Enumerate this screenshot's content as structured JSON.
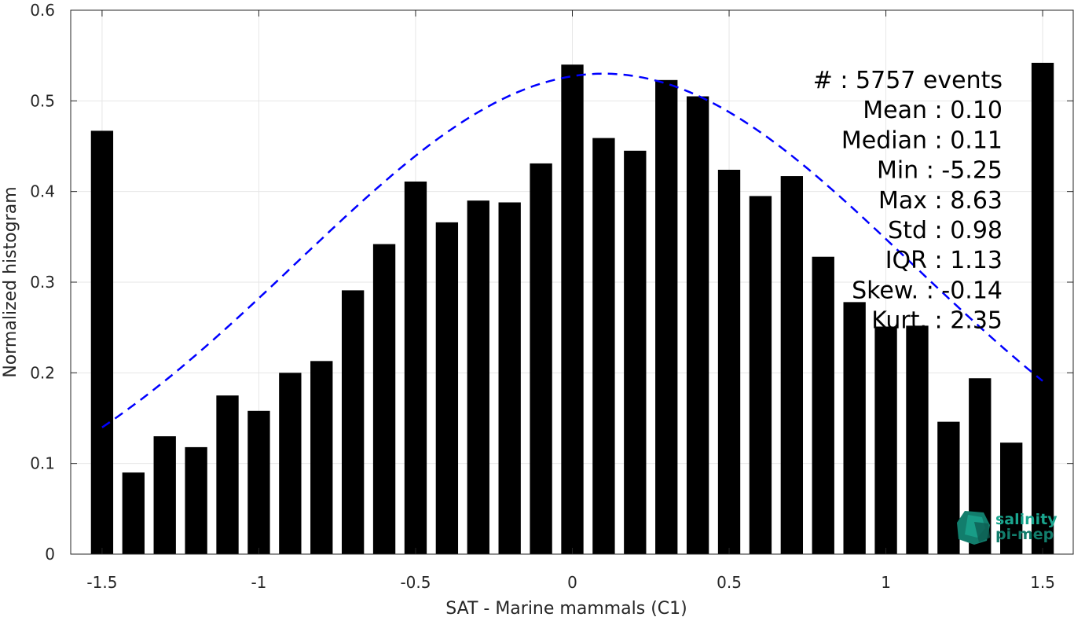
{
  "chart_data": {
    "type": "bar",
    "xlabel": "SAT - Marine mammals (C1)",
    "ylabel": "Normalized histogram",
    "xlim": [
      -1.6,
      1.6
    ],
    "ylim": [
      0,
      0.6
    ],
    "xticks": [
      "-1.5",
      "-1",
      "-0.5",
      "0",
      "0.5",
      "1",
      "1.5"
    ],
    "yticks": [
      "0",
      "0.1",
      "0.2",
      "0.3",
      "0.4",
      "0.5",
      "0.6"
    ],
    "grid": true,
    "bar_color": "#000000",
    "fit_color": "#0000ff",
    "x": [
      -1.5,
      -1.4,
      -1.3,
      -1.2,
      -1.1,
      -1.0,
      -0.9,
      -0.8,
      -0.7,
      -0.6,
      -0.5,
      -0.4,
      -0.3,
      -0.2,
      -0.1,
      0.0,
      0.1,
      0.2,
      0.3,
      0.4,
      0.5,
      0.6,
      0.7,
      0.8,
      0.9,
      1.0,
      1.1,
      1.2,
      1.3,
      1.4,
      1.5
    ],
    "values": [
      0.467,
      0.09,
      0.13,
      0.118,
      0.175,
      0.158,
      0.2,
      0.213,
      0.291,
      0.342,
      0.411,
      0.366,
      0.39,
      0.388,
      0.431,
      0.54,
      0.459,
      0.445,
      0.523,
      0.505,
      0.424,
      0.395,
      0.417,
      0.328,
      0.278,
      0.251,
      0.252,
      0.146,
      0.194,
      0.123,
      0.542
    ],
    "fit": {
      "type": "gaussian-dashed",
      "mean": 0.1,
      "std": 0.98,
      "peak": 0.53,
      "x_range": [
        -1.5,
        1.5
      ]
    },
    "stats": [
      {
        "label": "#",
        "sep": " : ",
        "value": "5757 events"
      },
      {
        "label": "Mean",
        "sep": " : ",
        "value": "0.10"
      },
      {
        "label": "Median",
        "sep": " : ",
        "value": "0.11"
      },
      {
        "label": "Min",
        "sep": " : ",
        "value": "-5.25"
      },
      {
        "label": "Max",
        "sep": " : ",
        "value": "8.63"
      },
      {
        "label": "Std",
        "sep": " : ",
        "value": "0.98"
      },
      {
        "label": "IQR",
        "sep": " : ",
        "value": "1.13"
      },
      {
        "label": "Skew.",
        "sep": " : ",
        "value": "-0.14"
      },
      {
        "label": "Kurt.",
        "sep": " : ",
        "value": "2.35"
      }
    ]
  },
  "logo": {
    "line1": "salinity",
    "line2": "pi-mep",
    "color": "#1aa58e"
  }
}
